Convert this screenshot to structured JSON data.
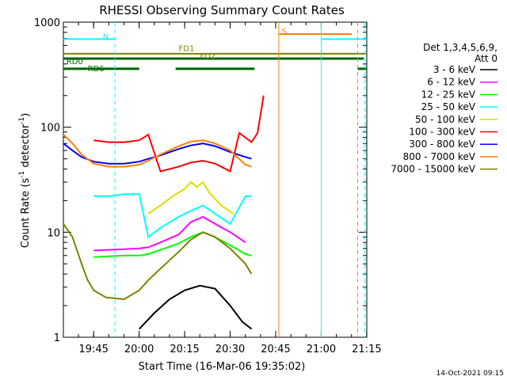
{
  "chart_data": {
    "type": "line",
    "title": "RHESSI Observing Summary Count Rates",
    "xlabel": "Start Time (16-Mar-06 19:35:02)",
    "ylabel_main": "Count Rate (s",
    "ylabel_sup1": "-1",
    "ylabel_mid": " detector",
    "ylabel_sup2": "-1",
    "ylabel_end": ")",
    "y_scale": "log",
    "ylim": [
      1,
      1000
    ],
    "xlim_minutes": [
      0,
      100
    ],
    "x_ticks": [
      {
        "minute": 9.97,
        "label": "19:45"
      },
      {
        "minute": 24.97,
        "label": "20:00"
      },
      {
        "minute": 39.97,
        "label": "20:15"
      },
      {
        "minute": 54.97,
        "label": "20:30"
      },
      {
        "minute": 69.97,
        "label": "20:45"
      },
      {
        "minute": 84.97,
        "label": "21:00"
      },
      {
        "minute": 99.97,
        "label": "21:15"
      }
    ],
    "y_ticks": [
      {
        "value": 1,
        "label": "1"
      },
      {
        "value": 10,
        "label": "10"
      },
      {
        "value": 100,
        "label": "100"
      },
      {
        "value": 1000,
        "label": "1000"
      }
    ],
    "legend_header_1": "Det 1,3,4,5,6,9,",
    "legend_header_2": "Att 0",
    "footer_date": "14-Oct-2021 09:15",
    "series": [
      {
        "name": "3 - 6 keV",
        "color": "#000000",
        "x": [
          25,
          30,
          35,
          40,
          45,
          50,
          55,
          59,
          62
        ],
        "y": [
          1.2,
          1.7,
          2.3,
          2.8,
          3.1,
          2.9,
          2.0,
          1.4,
          1.2
        ]
      },
      {
        "name": "6 - 12 keV",
        "color": "#ff00ff",
        "x": [
          10,
          15,
          20,
          25,
          28,
          32,
          38,
          42,
          46,
          50,
          55,
          60
        ],
        "y": [
          6.7,
          6.8,
          6.9,
          7.0,
          7.2,
          8.0,
          9.5,
          12.5,
          14.0,
          12.0,
          10.0,
          8.0
        ]
      },
      {
        "name": "12 - 25 keV",
        "color": "#00ff00",
        "x": [
          10,
          15,
          20,
          25,
          28,
          32,
          38,
          42,
          46,
          50,
          55,
          60,
          62
        ],
        "y": [
          5.8,
          5.9,
          6.0,
          6.0,
          6.2,
          6.8,
          7.8,
          9.0,
          10.0,
          9.0,
          7.5,
          6.2,
          6.0
        ]
      },
      {
        "name": "25 - 50 keV",
        "color": "#00ffff",
        "x": [
          10,
          15,
          20,
          25,
          28,
          32,
          38,
          42,
          46,
          50,
          55,
          60,
          62
        ],
        "y": [
          22,
          22,
          23,
          23,
          9,
          11,
          14,
          16,
          18,
          15,
          12,
          22,
          22
        ]
      },
      {
        "name": "50 - 100 keV",
        "color": "#dddd00",
        "x": [
          28,
          32,
          36,
          40,
          42,
          44,
          46,
          48,
          52,
          56
        ],
        "y": [
          15,
          18,
          22,
          26,
          30,
          27,
          30,
          24,
          18,
          15
        ]
      },
      {
        "name": "100 - 300 keV",
        "color": "#ff0000",
        "x": [
          10,
          15,
          20,
          25,
          28,
          32,
          38,
          42,
          46,
          50,
          55,
          58,
          62,
          64,
          66
        ],
        "y": [
          75,
          72,
          72,
          75,
          85,
          38,
          42,
          46,
          48,
          45,
          38,
          88,
          72,
          88,
          200
        ]
      },
      {
        "name": "300 - 800 keV",
        "color": "#0000ff",
        "x": [
          0,
          3,
          6,
          10,
          15,
          20,
          25,
          28,
          32,
          38,
          42,
          46,
          50,
          55,
          60,
          62
        ],
        "y": [
          70,
          60,
          52,
          47,
          45,
          45,
          47,
          50,
          54,
          62,
          67,
          70,
          66,
          58,
          52,
          50
        ]
      },
      {
        "name": "800 - 7000 keV",
        "color": "#ff8000",
        "x": [
          0,
          3,
          6,
          10,
          15,
          20,
          25,
          28,
          32,
          38,
          42,
          46,
          50,
          55,
          60,
          62
        ],
        "y": [
          85,
          70,
          55,
          45,
          42,
          42,
          44,
          48,
          55,
          66,
          73,
          75,
          70,
          60,
          44,
          42
        ]
      },
      {
        "name": "7000 - 15000 keV",
        "color": "#808000",
        "x": [
          0,
          3,
          6,
          8,
          10,
          14,
          20,
          25,
          28,
          32,
          38,
          42,
          46,
          50,
          55,
          60,
          62
        ],
        "y": [
          12,
          9,
          5,
          3.5,
          2.8,
          2.4,
          2.3,
          2.8,
          3.5,
          4.5,
          6.5,
          8.5,
          10,
          9,
          7,
          5,
          4
        ]
      }
    ],
    "annotations": [
      {
        "label": "N",
        "minute": 13,
        "value": 690,
        "color": "#00ffff"
      },
      {
        "label": "S",
        "minute": 72,
        "value": 770,
        "color": "#ff8000"
      },
      {
        "label": "FD1",
        "minute": 38,
        "value": 530,
        "color": "#808000"
      },
      {
        "label": "FD2",
        "minute": 45,
        "value": 450,
        "color": "#808000"
      },
      {
        "label": "RD0",
        "minute": 1,
        "value": 400,
        "color": "#006400"
      },
      {
        "label": "RD6",
        "minute": 8,
        "value": 340,
        "color": "#006400"
      }
    ]
  }
}
